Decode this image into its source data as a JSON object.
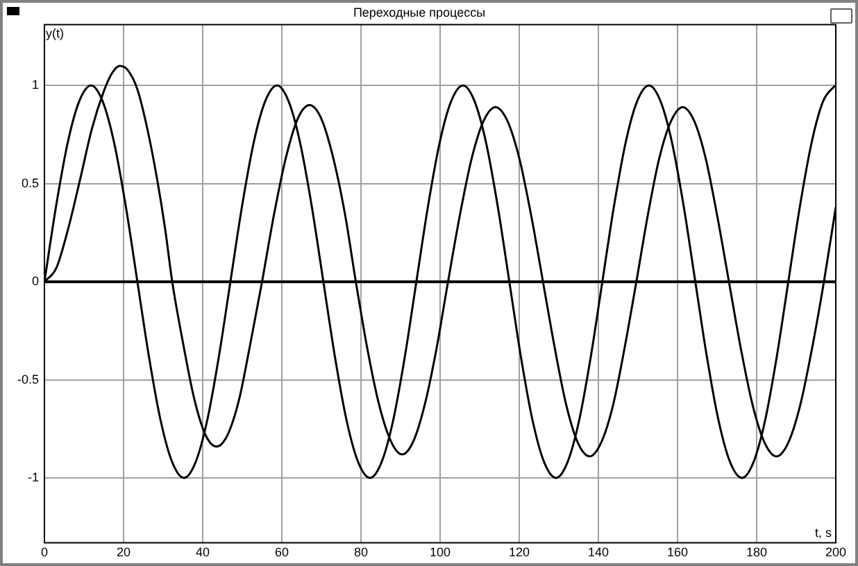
{
  "chart_data": {
    "type": "line",
    "title": "Переходные процессы",
    "xlabel": "t, s",
    "ylabel": "y(t)",
    "xlim": [
      0,
      200
    ],
    "xticks": [
      0,
      20,
      40,
      60,
      80,
      100,
      120,
      140,
      160,
      180,
      200
    ],
    "ylim": [
      -1.33,
      1.31
    ],
    "yticks": [
      -1,
      -0.5,
      0,
      0.5,
      1
    ],
    "grid": true,
    "legend": false,
    "marker": "none",
    "line_style": "solid",
    "ref_lines": [
      {
        "axis": "y",
        "value": 0,
        "color": "#000000"
      }
    ],
    "series": [
      {
        "color": "#000000",
        "x": [
          0,
          2.9,
          5.9,
          8.8,
          11.8,
          14.7,
          17.6,
          20.6,
          23.5,
          26.4,
          29.4,
          32.3,
          35.3,
          38.2,
          41.1,
          44.1,
          47,
          49.9,
          52.9,
          55.8,
          58.8,
          61.7,
          64.6,
          67.6,
          70.5,
          73.4,
          76.4,
          79.3,
          82.3,
          85.2,
          88.1,
          91.1,
          94,
          96.9,
          99.9,
          102.8,
          105.8,
          108.7,
          111.6,
          114.6,
          117.5,
          120.4,
          123.4,
          126.3,
          129.3,
          132.2,
          135.1,
          138.1,
          141,
          143.9,
          146.9,
          149.8,
          152.8,
          155.7,
          158.6,
          161.6,
          164.5,
          167.4,
          170.4,
          173.3,
          176.3,
          179.2,
          182.1,
          185.1,
          188,
          190.9,
          193.9,
          196.8,
          199.8
        ],
        "values": [
          0,
          0.38,
          0.71,
          0.92,
          1,
          0.92,
          0.71,
          0.38,
          0,
          -0.38,
          -0.71,
          -0.92,
          -1,
          -0.92,
          -0.71,
          -0.38,
          0,
          0.38,
          0.71,
          0.92,
          1,
          0.92,
          0.71,
          0.38,
          0,
          -0.38,
          -0.71,
          -0.92,
          -1,
          -0.92,
          -0.71,
          -0.38,
          0,
          0.38,
          0.71,
          0.92,
          1,
          0.92,
          0.71,
          0.38,
          0,
          -0.38,
          -0.71,
          -0.92,
          -1,
          -0.92,
          -0.71,
          -0.38,
          0,
          0.38,
          0.71,
          0.92,
          1,
          0.92,
          0.71,
          0.38,
          0,
          -0.38,
          -0.71,
          -0.92,
          -1,
          -0.92,
          -0.71,
          -0.38,
          0,
          0.38,
          0.71,
          0.92,
          1
        ]
      },
      {
        "color": "#000000",
        "x": [
          0,
          3,
          6,
          9,
          12,
          15,
          17,
          19,
          21,
          23.5,
          26,
          28.5,
          30.5,
          32.3,
          35.1,
          37.9,
          40.7,
          43.5,
          46.3,
          49.2,
          52,
          55,
          58,
          61,
          64,
          67,
          70,
          73,
          76,
          78.7,
          81.6,
          84.5,
          87.5,
          90.4,
          93.3,
          96.2,
          99.1,
          102,
          105,
          108,
          111,
          114,
          117,
          120,
          123,
          126,
          129,
          131.9,
          134.8,
          137.8,
          140.7,
          143.7,
          146.6,
          149.6,
          152.5,
          155.4,
          158.4,
          161.3,
          164.2,
          167.1,
          170,
          173,
          176,
          179,
          182,
          185,
          188,
          191,
          194,
          197,
          200
        ],
        "values": [
          0,
          0.07,
          0.27,
          0.52,
          0.78,
          0.97,
          1.06,
          1.1,
          1.08,
          0.98,
          0.78,
          0.52,
          0.27,
          0,
          -0.32,
          -0.6,
          -0.78,
          -0.84,
          -0.78,
          -0.6,
          -0.32,
          0,
          0.34,
          0.63,
          0.83,
          0.9,
          0.83,
          0.63,
          0.34,
          0,
          -0.34,
          -0.62,
          -0.81,
          -0.88,
          -0.81,
          -0.62,
          -0.34,
          0,
          0.34,
          0.63,
          0.82,
          0.89,
          0.82,
          0.63,
          0.34,
          0,
          -0.34,
          -0.63,
          -0.82,
          -0.89,
          -0.82,
          -0.63,
          -0.34,
          0,
          0.34,
          0.63,
          0.82,
          0.89,
          0.82,
          0.63,
          0.34,
          0,
          -0.34,
          -0.63,
          -0.82,
          -0.89,
          -0.82,
          -0.63,
          -0.34,
          0,
          0.38
        ]
      }
    ]
  }
}
